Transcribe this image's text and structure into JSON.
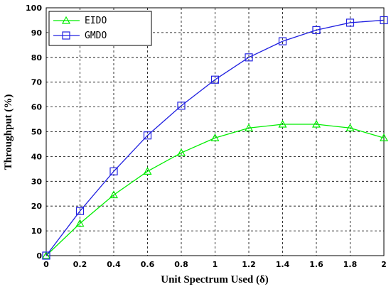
{
  "chart_data": {
    "type": "line",
    "xlabel": "Unit Spectrum Used (δ)",
    "ylabel": "Throughput (%)",
    "xlim": [
      0,
      2
    ],
    "ylim": [
      0,
      100
    ],
    "xticks": [
      "0",
      "0.2",
      "0.4",
      "0.6",
      "0.8",
      "1",
      "1.2",
      "1.4",
      "1.6",
      "1.8",
      "2"
    ],
    "yticks": [
      "0",
      "10",
      "20",
      "30",
      "40",
      "50",
      "60",
      "70",
      "80",
      "90",
      "100"
    ],
    "grid": true,
    "legend_position": "top-left",
    "x": [
      0,
      0.2,
      0.4,
      0.6,
      0.8,
      1.0,
      1.2,
      1.4,
      1.6,
      1.8,
      2.0
    ],
    "series": [
      {
        "name": "EIDO",
        "color": "#00ee00",
        "marker": "triangle",
        "values": [
          0,
          13,
          24.5,
          34,
          41.5,
          47.5,
          51.5,
          53,
          53,
          51.5,
          47.5
        ]
      },
      {
        "name": "GMDO",
        "color": "#2020e0",
        "marker": "square",
        "values": [
          0,
          18,
          34,
          48.5,
          60.5,
          71,
          80,
          86.5,
          91,
          94,
          95
        ]
      }
    ]
  }
}
